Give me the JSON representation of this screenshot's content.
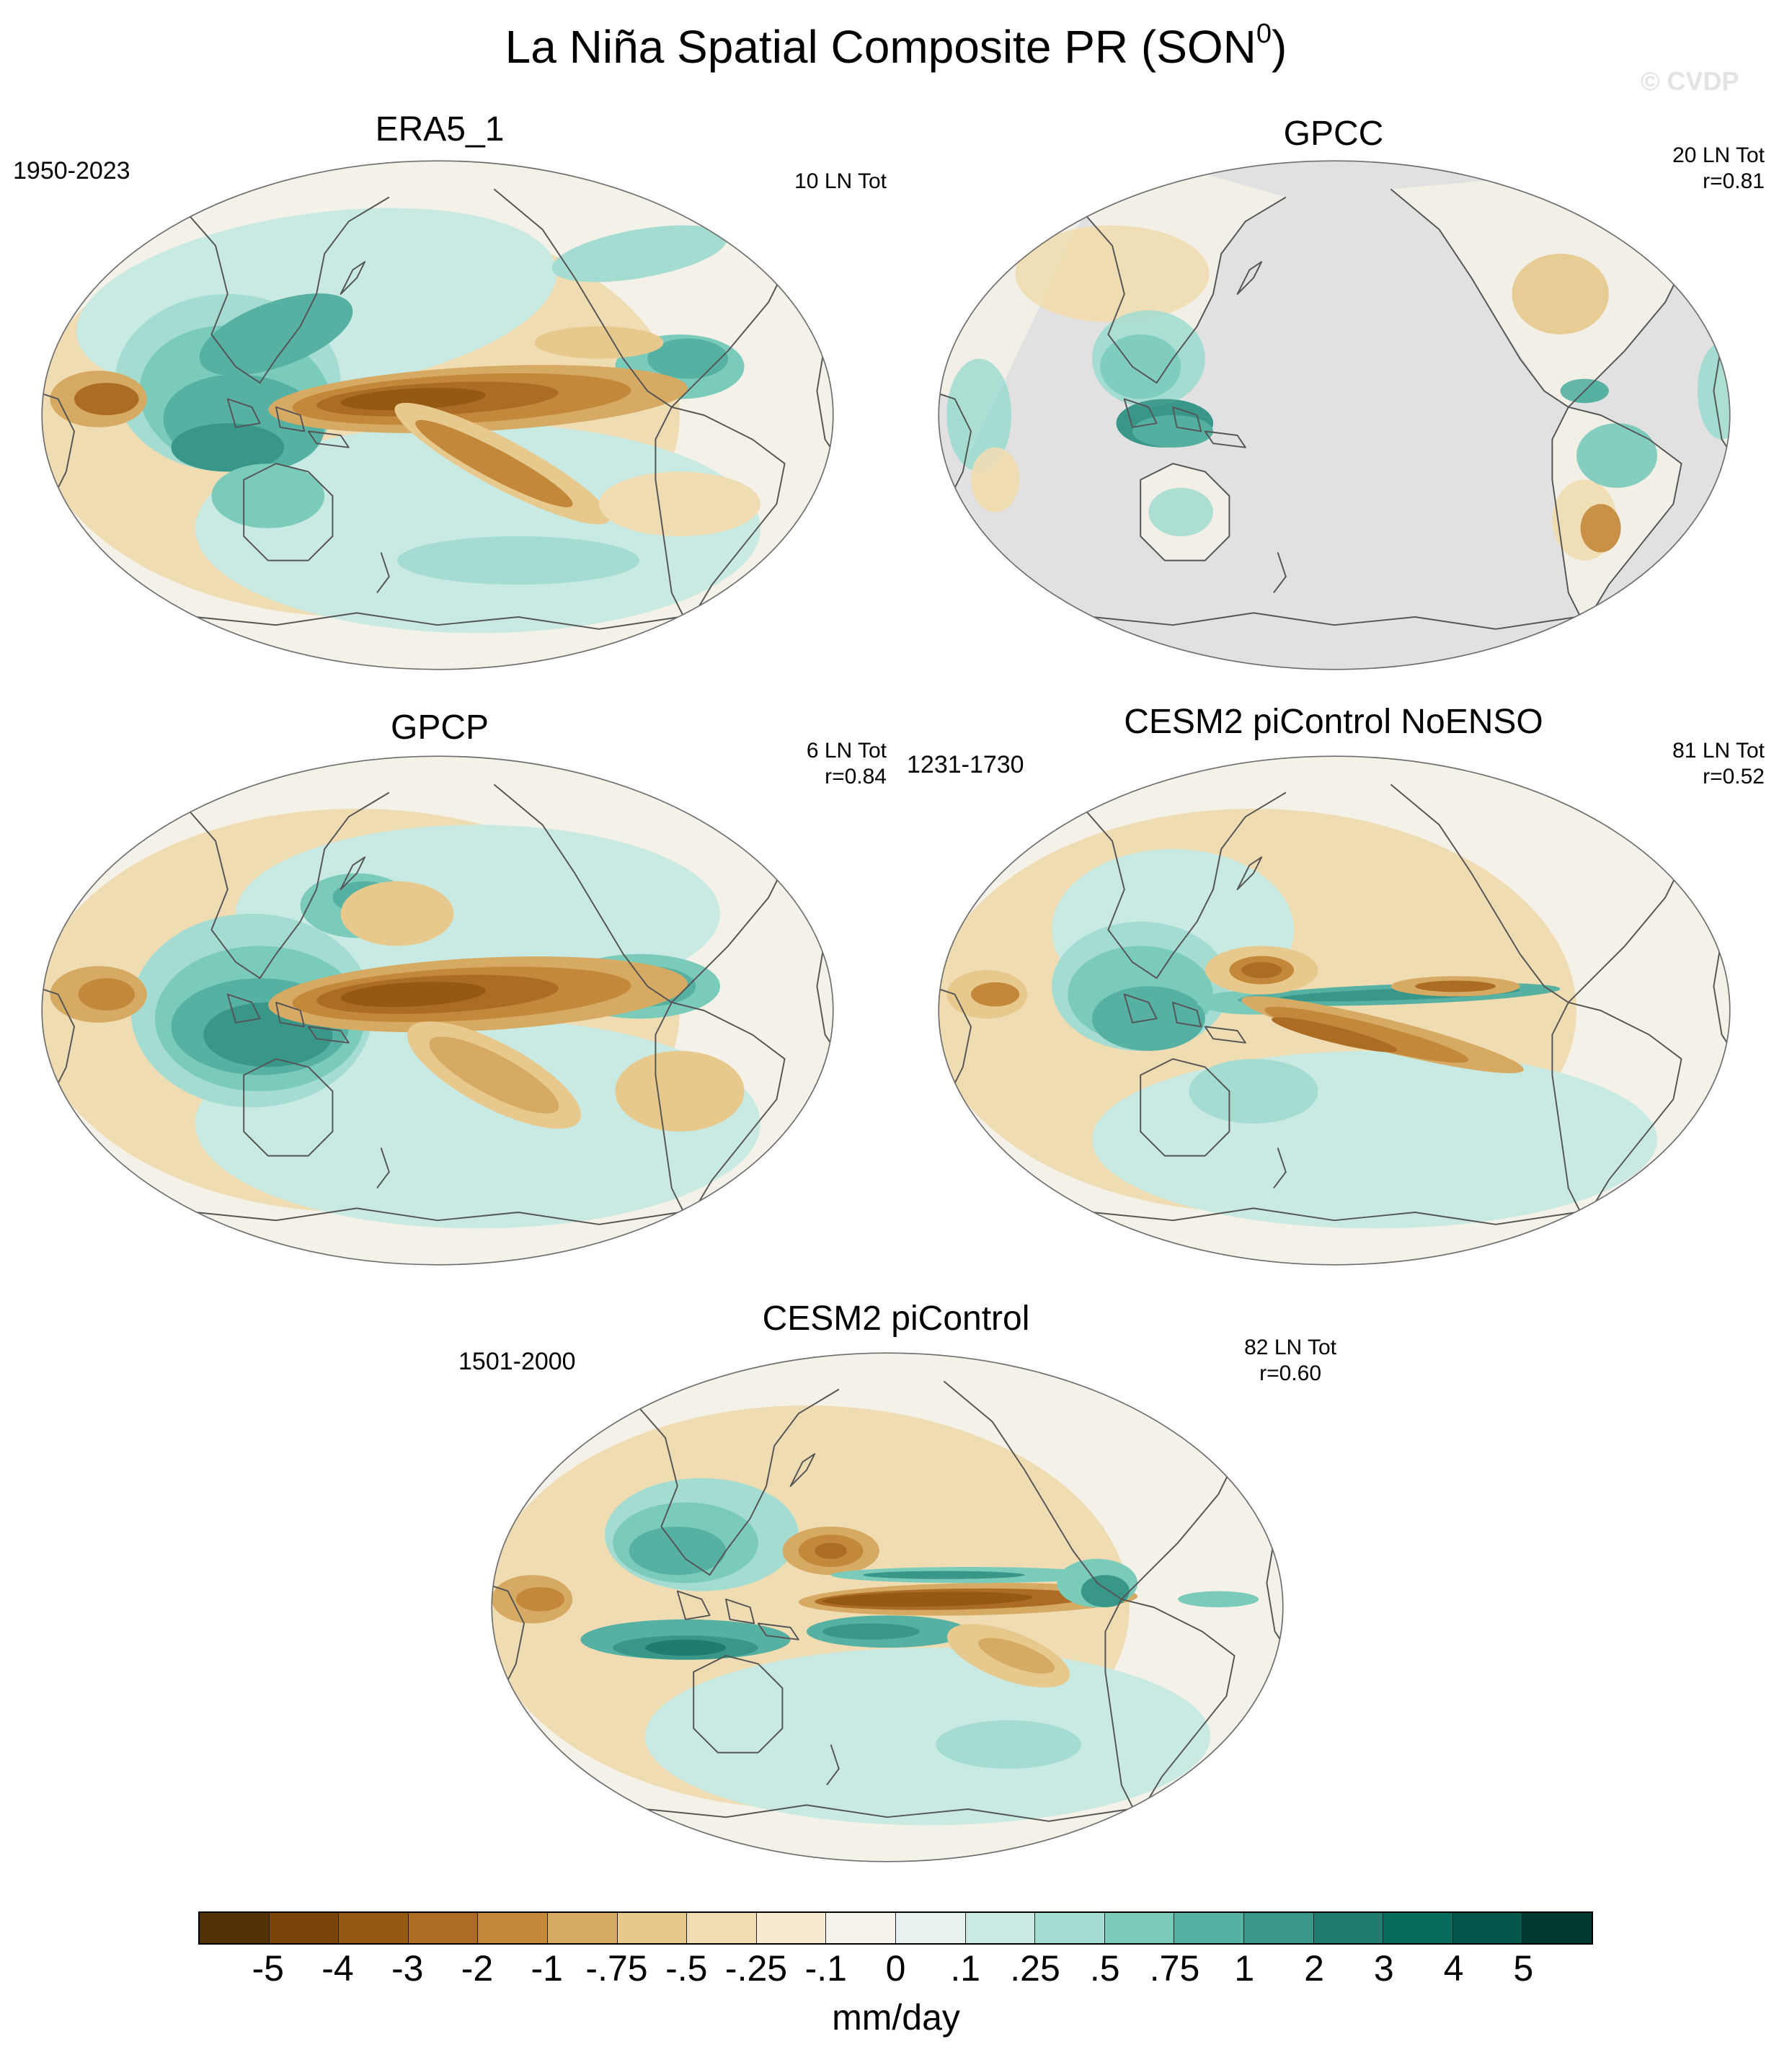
{
  "title": {
    "text": "La Niña Spatial Composite PR (SON",
    "superscript": "0",
    "close": ")"
  },
  "watermark": "© CVDP",
  "colors": {
    "map_background": "#f4f1e8",
    "no_data": "#e1e1e1",
    "coastline": "#555555",
    "brown_strong": "#8c510a",
    "teal_strong": "#01665e"
  },
  "panels": [
    {
      "id": "era5",
      "title": "ERA5_1",
      "period": "1950-2023",
      "events": "10 LN Tot",
      "correlation": ""
    },
    {
      "id": "gpcc",
      "title": "GPCC",
      "period": "",
      "events": "20 LN Tot",
      "correlation": "r=0.81"
    },
    {
      "id": "gpcp",
      "title": "GPCP",
      "period": "",
      "events": "6 LN Tot",
      "correlation": "r=0.84"
    },
    {
      "id": "noenso",
      "title": "CESM2 piControl NoENSO",
      "period": "1231-1730",
      "events": "81 LN Tot",
      "correlation": "r=0.52"
    },
    {
      "id": "picontrol",
      "title": "CESM2 piControl",
      "period": "1501-2000",
      "events": "82 LN Tot",
      "correlation": "r=0.60"
    }
  ],
  "colorbar": {
    "colors": [
      "#543005",
      "#7a4508",
      "#945a12",
      "#ad6c24",
      "#c4883a",
      "#d6aa63",
      "#e7c98e",
      "#f0dcb2",
      "#f6ead0",
      "#f5f2ea",
      "#e7f2ef",
      "#c9eae2",
      "#a5dcd1",
      "#7bcbbb",
      "#56b1a2",
      "#399789",
      "#1e7d70",
      "#066a5c",
      "#02574a",
      "#00392f"
    ],
    "labels": [
      "-5",
      "-4",
      "-3",
      "-2",
      "-1",
      "-.75",
      "-.5",
      "-.25",
      "-.1",
      "0",
      ".1",
      ".25",
      ".5",
      ".75",
      "1",
      "2",
      "3",
      "4",
      "5"
    ],
    "units": "mm/day"
  }
}
